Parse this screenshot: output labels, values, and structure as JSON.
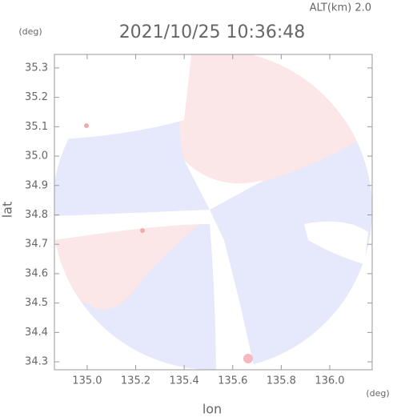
{
  "chart_data": {
    "type": "radar-field",
    "altitude_label": "ALT(km) 2.0",
    "title": "2021/10/25 10:36:48",
    "y_unit": "(deg)",
    "x_unit": "(deg)",
    "ylabel": "lat",
    "xlabel": "lon",
    "xlim": [
      134.865,
      136.175
    ],
    "xticks": [
      {
        "value": 135.0,
        "label": "135.0"
      },
      {
        "value": 135.2,
        "label": "135.2"
      },
      {
        "value": 135.4,
        "label": "135.4"
      },
      {
        "value": 135.6,
        "label": "135.6"
      },
      {
        "value": 135.8,
        "label": "135.8"
      },
      {
        "value": 136.0,
        "label": "136.0"
      }
    ],
    "ylim": [
      34.273,
      35.346
    ],
    "yticks": [
      {
        "value": 34.3,
        "label": "34.3"
      },
      {
        "value": 34.4,
        "label": "34.4"
      },
      {
        "value": 34.5,
        "label": "34.5"
      },
      {
        "value": 34.6,
        "label": "34.6"
      },
      {
        "value": 34.7,
        "label": "34.7"
      },
      {
        "value": 34.8,
        "label": "34.8"
      },
      {
        "value": 34.9,
        "label": "34.9"
      },
      {
        "value": 35.0,
        "label": "35.0"
      },
      {
        "value": 35.1,
        "label": "35.1"
      },
      {
        "value": 35.2,
        "label": "35.2"
      },
      {
        "value": 35.3,
        "label": "35.3"
      }
    ]
  }
}
